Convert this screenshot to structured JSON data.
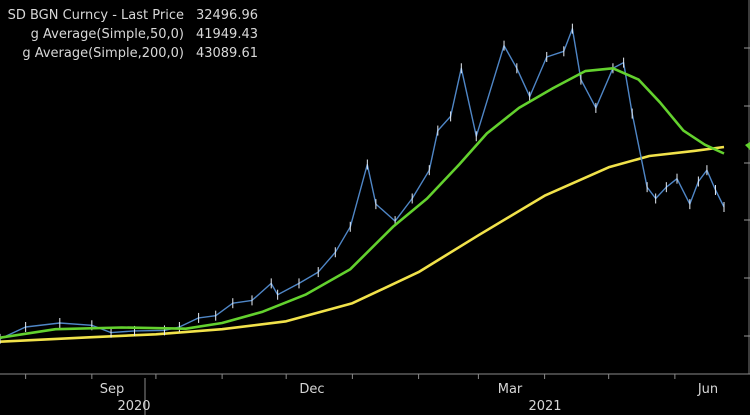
{
  "legend": [
    {
      "label": "SD BGN Curncy - Last Price",
      "value": "32496.96",
      "color": "#4f86c6"
    },
    {
      "label": "g Average(Simple,50,0)",
      "value": "41949.43",
      "color": "#63d12e"
    },
    {
      "label": "g Average(Simple,200,0)",
      "value": "43089.61",
      "color": "#f1e24a"
    }
  ],
  "chart_data": {
    "type": "line",
    "title": "",
    "xlabel": "",
    "ylabel": "",
    "x_ticks": [
      "Sep",
      "Dec",
      "Mar",
      "Jun"
    ],
    "x_year_labels": [
      "2020",
      "2021"
    ],
    "x_range": [
      "2020-07-20",
      "2021-06-24"
    ],
    "grid": "none",
    "legend_position": "top-left",
    "series": [
      {
        "name": "SD BGN Curncy - Last Price",
        "color": "#4f86c6",
        "points": [
          [
            "2020-07-20",
            9200
          ],
          [
            "2020-08-01",
            11300
          ],
          [
            "2020-08-17",
            12000
          ],
          [
            "2020-09-01",
            11600
          ],
          [
            "2020-09-10",
            10300
          ],
          [
            "2020-09-21",
            10600
          ],
          [
            "2020-10-05",
            10700
          ],
          [
            "2020-10-12",
            11300
          ],
          [
            "2020-10-21",
            12900
          ],
          [
            "2020-10-29",
            13300
          ],
          [
            "2020-11-06",
            15500
          ],
          [
            "2020-11-15",
            16000
          ],
          [
            "2020-11-24",
            19000
          ],
          [
            "2020-11-27",
            17000
          ],
          [
            "2020-12-07",
            19000
          ],
          [
            "2020-12-16",
            21000
          ],
          [
            "2020-12-24",
            24500
          ],
          [
            "2020-12-31",
            29000
          ],
          [
            "2021-01-08",
            40000
          ],
          [
            "2021-01-12",
            33000
          ],
          [
            "2021-01-21",
            30000
          ],
          [
            "2021-01-29",
            34000
          ],
          [
            "2021-02-06",
            39000
          ],
          [
            "2021-02-10",
            46000
          ],
          [
            "2021-02-16",
            48500
          ],
          [
            "2021-02-21",
            57000
          ],
          [
            "2021-02-28",
            45000
          ],
          [
            "2021-03-13",
            61000
          ],
          [
            "2021-03-19",
            57000
          ],
          [
            "2021-03-25",
            52000
          ],
          [
            "2021-04-02",
            59000
          ],
          [
            "2021-04-10",
            60000
          ],
          [
            "2021-04-14",
            64000
          ],
          [
            "2021-04-18",
            55000
          ],
          [
            "2021-04-25",
            50000
          ],
          [
            "2021-05-03",
            57000
          ],
          [
            "2021-05-08",
            58000
          ],
          [
            "2021-05-12",
            49000
          ],
          [
            "2021-05-19",
            36000
          ],
          [
            "2021-05-23",
            34000
          ],
          [
            "2021-05-28",
            36000
          ],
          [
            "2021-06-02",
            37500
          ],
          [
            "2021-06-08",
            33000
          ],
          [
            "2021-06-12",
            37000
          ],
          [
            "2021-06-16",
            39000
          ],
          [
            "2021-06-20",
            35500
          ],
          [
            "2021-06-24",
            32500
          ]
        ]
      },
      {
        "name": "g Average(Simple,50,0)",
        "color": "#63d12e",
        "points": [
          [
            "2020-07-20",
            9400
          ],
          [
            "2020-08-15",
            10900
          ],
          [
            "2020-09-15",
            11200
          ],
          [
            "2020-10-15",
            11000
          ],
          [
            "2020-11-01",
            12000
          ],
          [
            "2020-11-20",
            14000
          ],
          [
            "2020-12-10",
            17000
          ],
          [
            "2020-12-31",
            21500
          ],
          [
            "2021-01-20",
            29000
          ],
          [
            "2021-02-05",
            34000
          ],
          [
            "2021-02-20",
            40000
          ],
          [
            "2021-03-05",
            45500
          ],
          [
            "2021-03-20",
            50000
          ],
          [
            "2021-04-05",
            53500
          ],
          [
            "2021-04-20",
            56500
          ],
          [
            "2021-05-03",
            57000
          ],
          [
            "2021-05-15",
            55000
          ],
          [
            "2021-05-25",
            51000
          ],
          [
            "2021-06-05",
            46000
          ],
          [
            "2021-06-15",
            43500
          ],
          [
            "2021-06-24",
            41950
          ]
        ]
      },
      {
        "name": "g Average(Simple,200,0)",
        "color": "#f1e24a",
        "points": [
          [
            "2020-07-20",
            8700
          ],
          [
            "2020-09-01",
            9500
          ],
          [
            "2020-10-01",
            10000
          ],
          [
            "2020-11-01",
            10900
          ],
          [
            "2020-12-01",
            12300
          ],
          [
            "2021-01-01",
            15500
          ],
          [
            "2021-02-01",
            21000
          ],
          [
            "2021-03-01",
            27500
          ],
          [
            "2021-04-01",
            34500
          ],
          [
            "2021-05-01",
            39500
          ],
          [
            "2021-05-20",
            41500
          ],
          [
            "2021-06-10",
            42400
          ],
          [
            "2021-06-24",
            43090
          ]
        ]
      }
    ]
  }
}
